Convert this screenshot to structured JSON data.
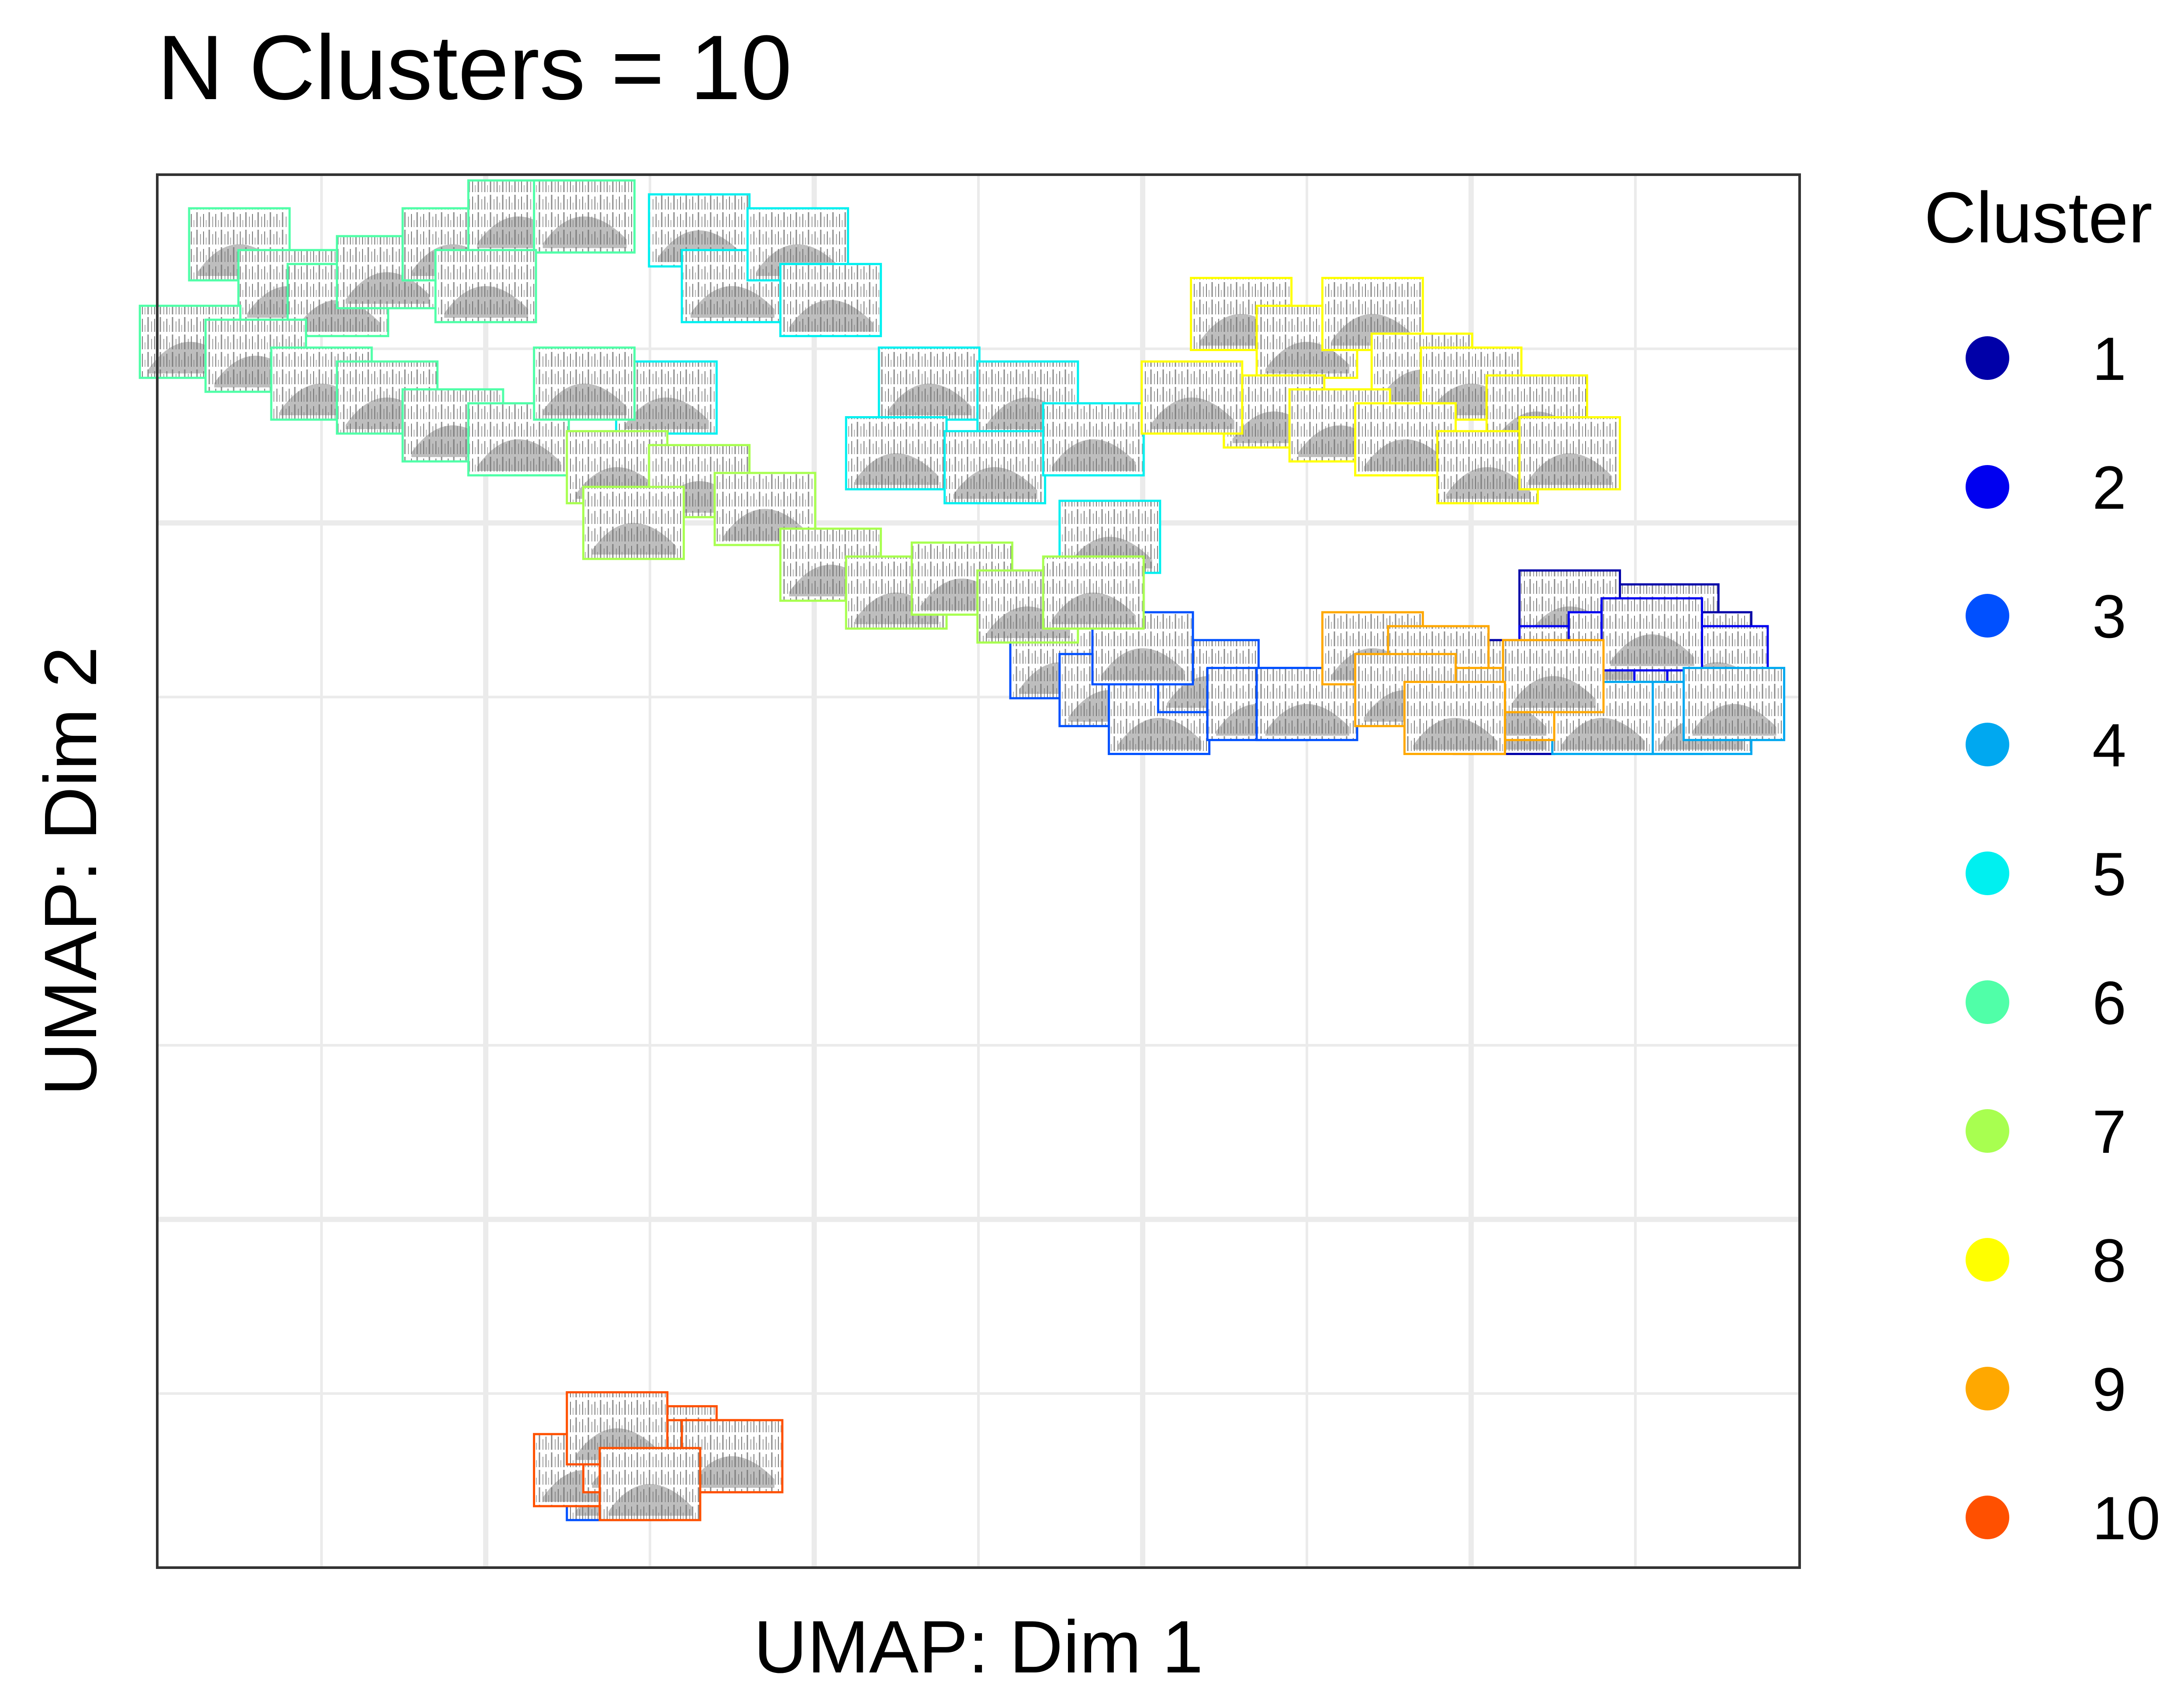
{
  "chart_data": {
    "type": "scatter",
    "title": "N Clusters = 10",
    "xlabel": "UMAP: Dim 1",
    "ylabel": "UMAP: Dim 2",
    "grid": true,
    "marker": "spectrogram-thumbnail",
    "legend": {
      "title": "Cluster",
      "placement": "right"
    },
    "xlim": [
      0,
      100
    ],
    "ylim": [
      0,
      100
    ],
    "series": [
      {
        "name": "1",
        "color": "#0000A8",
        "points": [
          [
            84,
            64
          ],
          [
            82,
            61
          ],
          [
            92,
            68
          ],
          [
            90,
            62
          ],
          [
            88,
            65
          ],
          [
            86,
            69
          ],
          [
            94,
            66
          ],
          [
            91,
            64
          ]
        ]
      },
      {
        "name": "2",
        "color": "#0000F0",
        "points": [
          [
            86,
            65
          ],
          [
            89,
            66
          ],
          [
            93,
            64
          ],
          [
            95,
            65
          ],
          [
            91,
            67
          ]
        ]
      },
      {
        "name": "3",
        "color": "#0050FF",
        "points": [
          [
            55,
            65
          ],
          [
            58,
            63
          ],
          [
            61,
            61
          ],
          [
            64,
            64
          ],
          [
            67,
            62
          ],
          [
            70,
            62
          ],
          [
            60,
            66
          ],
          [
            28,
            6
          ]
        ]
      },
      {
        "name": "4",
        "color": "#00A8F0",
        "points": [
          [
            91,
            61
          ],
          [
            94,
            61
          ],
          [
            96,
            62
          ],
          [
            88,
            61
          ]
        ]
      },
      {
        "name": "5",
        "color": "#00F0F0",
        "points": [
          [
            33,
            96
          ],
          [
            35,
            92
          ],
          [
            39,
            95
          ],
          [
            41,
            91
          ],
          [
            47,
            85
          ],
          [
            53,
            84
          ],
          [
            45,
            80
          ],
          [
            51,
            79
          ],
          [
            57,
            81
          ],
          [
            58,
            74
          ],
          [
            31,
            84
          ]
        ]
      },
      {
        "name": "6",
        "color": "#50FFA8",
        "points": [
          [
            5,
            95
          ],
          [
            8,
            92
          ],
          [
            11,
            91
          ],
          [
            14,
            93
          ],
          [
            18,
            95
          ],
          [
            22,
            97
          ],
          [
            26,
            97
          ],
          [
            2,
            88
          ],
          [
            6,
            87
          ],
          [
            10,
            85
          ],
          [
            14,
            84
          ],
          [
            18,
            82
          ],
          [
            22,
            81
          ],
          [
            26,
            85
          ],
          [
            20,
            92
          ]
        ]
      },
      {
        "name": "7",
        "color": "#A8FF50",
        "points": [
          [
            28,
            79
          ],
          [
            33,
            78
          ],
          [
            37,
            76
          ],
          [
            41,
            72
          ],
          [
            45,
            70
          ],
          [
            49,
            71
          ],
          [
            53,
            69
          ],
          [
            57,
            70
          ],
          [
            29,
            75
          ]
        ]
      },
      {
        "name": "8",
        "color": "#FFFF00",
        "points": [
          [
            66,
            90
          ],
          [
            70,
            88
          ],
          [
            74,
            90
          ],
          [
            77,
            86
          ],
          [
            80,
            85
          ],
          [
            84,
            83
          ],
          [
            68,
            83
          ],
          [
            72,
            82
          ],
          [
            76,
            81
          ],
          [
            81,
            79
          ],
          [
            86,
            80
          ],
          [
            63,
            84
          ]
        ]
      },
      {
        "name": "9",
        "color": "#FFA800",
        "points": [
          [
            74,
            66
          ],
          [
            78,
            65
          ],
          [
            82,
            62
          ],
          [
            76,
            63
          ],
          [
            85,
            64
          ],
          [
            79,
            61
          ]
        ]
      },
      {
        "name": "10",
        "color": "#FF5000",
        "points": [
          [
            26,
            7
          ],
          [
            29,
            8
          ],
          [
            31,
            9
          ],
          [
            33,
            8
          ],
          [
            35,
            8
          ],
          [
            28,
            10
          ],
          [
            30,
            6
          ]
        ]
      }
    ]
  }
}
